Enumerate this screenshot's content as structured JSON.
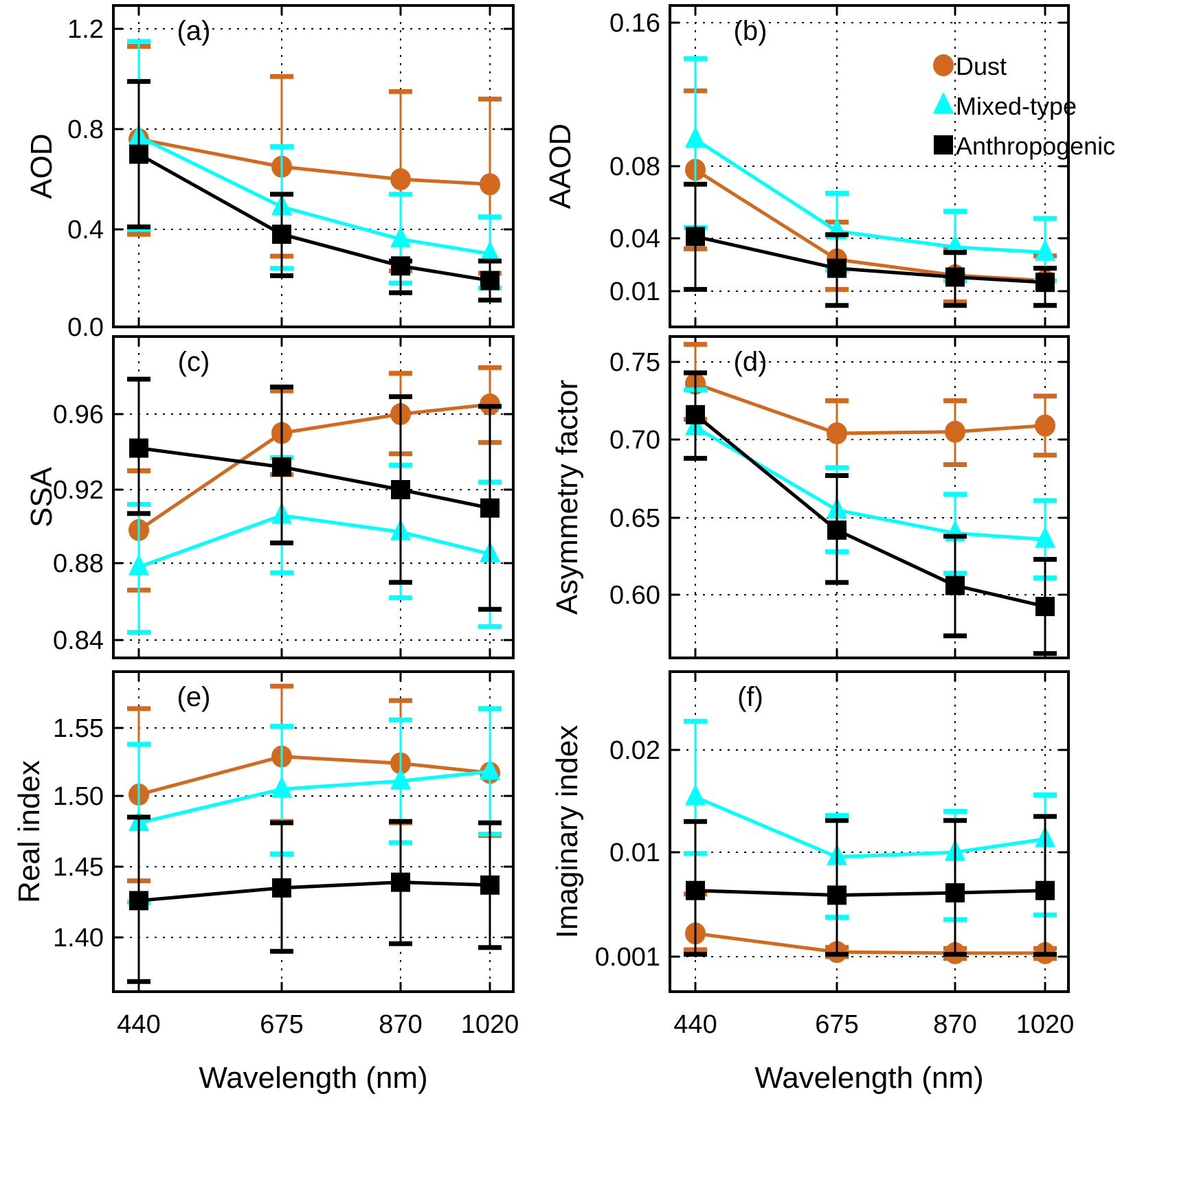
{
  "series_meta": [
    {
      "key": "dust",
      "name": "Dust",
      "color": "#D2691E",
      "marker": "circle"
    },
    {
      "key": "mixed",
      "name": "Mixed-type",
      "color": "#00FFFF",
      "marker": "triangle"
    },
    {
      "key": "anthro",
      "name": "Anthropogenic",
      "color": "#000000",
      "marker": "square"
    }
  ],
  "chart_data": [
    {
      "id": "a",
      "type": "line",
      "panel_label": "(a)",
      "title": "",
      "xlabel": "",
      "ylabel": "AOD",
      "categories": [
        "440",
        "675",
        "870",
        "1020"
      ],
      "yticks": [
        0.0,
        0.4,
        0.8,
        1.2
      ],
      "ytick_labels": [
        "0.0",
        "0.4",
        "0.8",
        "1.2"
      ],
      "ylim": [
        0.0,
        1.26
      ],
      "grid": true,
      "series": [
        {
          "name": "Dust",
          "values": [
            0.76,
            0.65,
            0.6,
            0.58
          ],
          "err_low": [
            0.38,
            0.29,
            0.23,
            0.22
          ],
          "err_high": [
            1.13,
            1.01,
            0.95,
            0.92
          ]
        },
        {
          "name": "Mixed-type",
          "values": [
            0.77,
            0.49,
            0.36,
            0.3
          ],
          "err_low": [
            0.4,
            0.24,
            0.18,
            0.16
          ],
          "err_high": [
            1.15,
            0.73,
            0.54,
            0.45
          ]
        },
        {
          "name": "Anthropogenic",
          "values": [
            0.7,
            0.38,
            0.25,
            0.19
          ],
          "err_low": [
            0.41,
            0.21,
            0.14,
            0.11
          ],
          "err_high": [
            0.99,
            0.54,
            0.27,
            0.27
          ]
        }
      ]
    },
    {
      "id": "b",
      "type": "line",
      "panel_label": "(b)",
      "title": "",
      "xlabel": "",
      "ylabel": "AAOD",
      "categories": [
        "440",
        "675",
        "870",
        "1020"
      ],
      "yticks": [
        0.01,
        0.04,
        0.08,
        0.16
      ],
      "ytick_labels": [
        "0.01",
        "0.04",
        "0.08",
        "0.16"
      ],
      "ylim": [
        0.0,
        0.17
      ],
      "grid": true,
      "legend": {
        "position": "top-right",
        "entries": [
          "Dust",
          "Mixed-type",
          "Anthropogenic"
        ]
      },
      "series": [
        {
          "name": "Dust",
          "values": [
            0.078,
            0.028,
            0.019,
            0.016
          ],
          "err_low": [
            0.034,
            0.011,
            0.007,
            0.006
          ],
          "err_high": [
            0.122,
            0.049,
            0.034,
            0.03
          ]
        },
        {
          "name": "Mixed-type",
          "values": [
            0.095,
            0.044,
            0.035,
            0.032
          ],
          "err_low": [
            0.046,
            0.022,
            0.016,
            0.016
          ],
          "err_high": [
            0.14,
            0.065,
            0.055,
            0.051
          ]
        },
        {
          "name": "Anthropogenic",
          "values": [
            0.041,
            0.023,
            0.018,
            0.015
          ],
          "err_low": [
            0.011,
            0.006,
            0.006,
            0.006
          ],
          "err_high": [
            0.07,
            0.042,
            0.032,
            0.023
          ]
        }
      ]
    },
    {
      "id": "c",
      "type": "line",
      "panel_label": "(c)",
      "title": "",
      "xlabel": "",
      "ylabel": "SSA",
      "categories": [
        "440",
        "675",
        "870",
        "1020"
      ],
      "yticks": [
        0.84,
        0.88,
        0.92,
        0.96
      ],
      "ytick_labels": [
        "0.84",
        "0.88",
        "0.92",
        "0.96"
      ],
      "ylim": [
        0.83,
        1.0
      ],
      "grid": true,
      "series": [
        {
          "name": "Dust",
          "values": [
            0.898,
            0.95,
            0.96,
            0.965
          ],
          "err_low": [
            0.866,
            0.928,
            0.939,
            0.945
          ],
          "err_high": [
            0.93,
            0.972,
            0.981,
            0.984
          ]
        },
        {
          "name": "Mixed-type",
          "values": [
            0.878,
            0.906,
            0.897,
            0.885
          ],
          "err_low": [
            0.844,
            0.875,
            0.862,
            0.847
          ],
          "err_high": [
            0.912,
            0.937,
            0.933,
            0.924
          ]
        },
        {
          "name": "Anthropogenic",
          "values": [
            0.942,
            0.932,
            0.92,
            0.91
          ],
          "err_low": [
            0.907,
            0.891,
            0.87,
            0.856
          ],
          "err_high": [
            0.978,
            0.974,
            0.969,
            0.964
          ]
        }
      ]
    },
    {
      "id": "d",
      "type": "line",
      "panel_label": "(d)",
      "title": "",
      "xlabel": "",
      "ylabel": "Asymmetry factor",
      "categories": [
        "440",
        "675",
        "870",
        "1020"
      ],
      "yticks": [
        0.6,
        0.65,
        0.7,
        0.75
      ],
      "ytick_labels": [
        "0.60",
        "0.65",
        "0.70",
        "0.75"
      ],
      "ylim": [
        0.557,
        0.763
      ],
      "grid": true,
      "series": [
        {
          "name": "Dust",
          "values": [
            0.736,
            0.704,
            0.705,
            0.709
          ],
          "err_low": [
            0.713,
            0.682,
            0.684,
            0.69
          ],
          "err_high": [
            0.759,
            0.725,
            0.725,
            0.728
          ]
        },
        {
          "name": "Mixed-type",
          "values": [
            0.708,
            0.655,
            0.64,
            0.636
          ],
          "err_low": [
            0.688,
            0.628,
            0.614,
            0.611
          ],
          "err_high": [
            0.732,
            0.682,
            0.665,
            0.661
          ]
        },
        {
          "name": "Anthropogenic",
          "values": [
            0.716,
            0.642,
            0.606,
            0.592
          ],
          "err_low": [
            0.688,
            0.608,
            0.572,
            0.56
          ],
          "err_high": [
            0.743,
            0.677,
            0.638,
            0.623
          ]
        }
      ]
    },
    {
      "id": "e",
      "type": "line",
      "panel_label": "(e)",
      "title": "",
      "xlabel": "Wavelength (nm)",
      "ylabel": "Real index",
      "categories": [
        "440",
        "675",
        "870",
        "1020"
      ],
      "yticks": [
        1.4,
        1.45,
        1.5,
        1.55
      ],
      "ytick_labels": [
        "1.40",
        "1.45",
        "1.50",
        "1.55"
      ],
      "ylim": [
        1.357,
        1.585
      ],
      "grid": true,
      "series": [
        {
          "name": "Dust",
          "values": [
            1.501,
            1.529,
            1.524,
            1.517
          ],
          "err_low": [
            1.44,
            1.482,
            1.481,
            1.472
          ],
          "err_high": [
            1.562,
            1.576,
            1.567,
            1.562
          ]
        },
        {
          "name": "Mixed-type",
          "values": [
            1.481,
            1.505,
            1.511,
            1.518
          ],
          "err_low": [
            1.425,
            1.459,
            1.467,
            1.473
          ],
          "err_high": [
            1.538,
            1.551,
            1.555,
            1.562
          ]
        },
        {
          "name": "Anthropogenic",
          "values": [
            1.426,
            1.435,
            1.439,
            1.437
          ],
          "err_low": [
            1.365,
            1.389,
            1.395,
            1.392
          ],
          "err_high": [
            1.485,
            1.481,
            1.482,
            1.481
          ]
        }
      ]
    },
    {
      "id": "f",
      "type": "line",
      "panel_label": "(f)",
      "title": "",
      "xlabel": "Wavelength (nm)",
      "ylabel": "Imaginary index",
      "categories": [
        "440",
        "675",
        "870",
        "1020"
      ],
      "yticks": [
        0.001,
        0.01,
        0.02
      ],
      "ytick_labels": [
        "0.001",
        "0.01",
        "0.02"
      ],
      "ylim": [
        0.0,
        0.026
      ],
      "grid": true,
      "series": [
        {
          "name": "Dust",
          "values": [
            0.003,
            0.0014,
            0.0013,
            0.0013
          ],
          "err_low": [
            0.0016,
            0.001,
            0.00095,
            0.00095
          ],
          "err_high": [
            0.0064,
            0.0018,
            0.0017,
            0.0017
          ]
        },
        {
          "name": "Mixed-type",
          "values": [
            0.0154,
            0.0096,
            0.01,
            0.0113
          ],
          "err_low": [
            0.0099,
            0.0044,
            0.0042,
            0.0046
          ],
          "err_high": [
            0.0222,
            0.0136,
            0.014,
            0.0156
          ]
        },
        {
          "name": "Anthropogenic",
          "values": [
            0.0067,
            0.0063,
            0.0065,
            0.0067
          ],
          "err_low": [
            0.0012,
            0.0012,
            0.0012,
            0.0012
          ],
          "err_high": [
            0.013,
            0.0131,
            0.0131,
            0.0135
          ]
        }
      ]
    }
  ]
}
